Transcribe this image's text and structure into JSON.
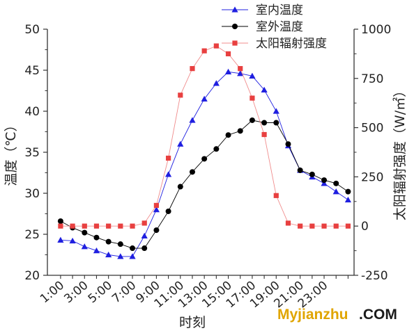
{
  "chart_data": {
    "type": "line",
    "x_tick_labels": [
      "1:00",
      "3:00",
      "5:00",
      "7:00",
      "9:00",
      "11:00",
      "13:00",
      "15:00",
      "17:00",
      "19:00",
      "21:00",
      "23:00"
    ],
    "xlabel": "时刻",
    "ylabel": "温度（℃）",
    "ylim": [
      20,
      50
    ],
    "y_ticks": [
      20,
      25,
      30,
      35,
      40,
      45,
      50
    ],
    "y2label": "太阳辐射强度（W/㎡）",
    "y2lim": [
      -250,
      1000
    ],
    "y2_ticks": [
      -250,
      0,
      250,
      500,
      750,
      1000
    ],
    "x": [
      0,
      1,
      2,
      3,
      4,
      5,
      6,
      7,
      8,
      9,
      10,
      11,
      12,
      13,
      14,
      15,
      16,
      17,
      18,
      19,
      20,
      21,
      22,
      23,
      24
    ],
    "series": [
      {
        "name": "室内温度",
        "axis": "left",
        "marker": "triangle",
        "color": "#1f1fe0",
        "values": [
          24.3,
          24.2,
          23.5,
          23.0,
          22.5,
          22.3,
          22.3,
          24.8,
          28.0,
          32.3,
          36.0,
          38.9,
          41.5,
          43.4,
          44.8,
          44.6,
          44.3,
          42.6,
          40.0,
          35.8,
          32.8,
          32.0,
          31.2,
          30.2,
          29.2
        ]
      },
      {
        "name": "室外温度",
        "axis": "left",
        "marker": "circle",
        "color": "#000000",
        "values": [
          26.6,
          25.8,
          25.2,
          24.6,
          24.1,
          23.8,
          23.3,
          23.3,
          25.5,
          27.8,
          30.8,
          32.6,
          34.2,
          35.4,
          37.1,
          37.6,
          38.9,
          38.6,
          38.6,
          36.0,
          32.8,
          32.3,
          31.6,
          31.2,
          30.2
        ]
      },
      {
        "name": "太阳辐射强度",
        "axis": "right",
        "marker": "square",
        "color": "#e84040",
        "line_color": "#f08c8c",
        "values": [
          0,
          0,
          0,
          0,
          0,
          0,
          0,
          15,
          105,
          345,
          665,
          800,
          890,
          915,
          875,
          800,
          650,
          465,
          155,
          15,
          0,
          0,
          0,
          0,
          0
        ]
      }
    ],
    "legend": "top-right",
    "grid": false
  },
  "watermark": {
    "main": "Myjianzhu",
    "suffix": ".COM"
  }
}
